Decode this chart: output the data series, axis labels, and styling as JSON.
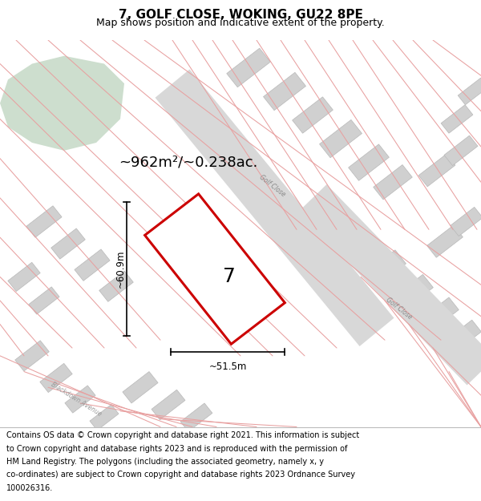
{
  "title": "7, GOLF CLOSE, WOKING, GU22 8PE",
  "subtitle": "Map shows position and indicative extent of the property.",
  "area_text": "~962m²/~0.238ac.",
  "height_label": "~60.9m",
  "width_label": "~51.5m",
  "number_label": "7",
  "footer_lines": [
    "Contains OS data © Crown copyright and database right 2021. This information is subject",
    "to Crown copyright and database rights 2023 and is reproduced with the permission of",
    "HM Land Registry. The polygons (including the associated geometry, namely x, y",
    "co-ordinates) are subject to Crown copyright and database rights 2023 Ordnance Survey",
    "100026316."
  ],
  "map_bg": "#f0eeec",
  "plot_color": "#cc0000",
  "green_color": "#cddece",
  "road_gray": "#d8d8d8",
  "building_face": "#d0d0d0",
  "building_edge": "#b8b8b8",
  "street_red": "#e8a0a0",
  "road_line": "#c8c8c8",
  "title_fontsize": 11,
  "subtitle_fontsize": 9,
  "footer_fontsize": 7.0,
  "note_fontsize": 13
}
